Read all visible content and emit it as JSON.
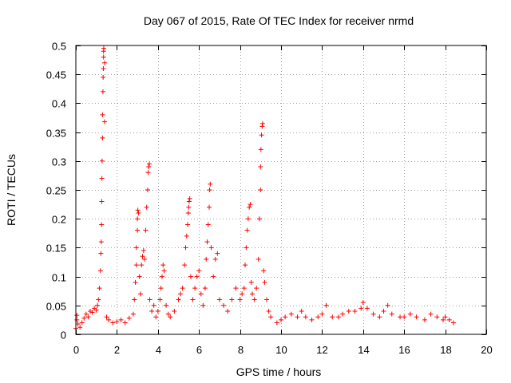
{
  "chart_data": {
    "type": "scatter",
    "title": "Day 067 of 2015, Rate Of TEC Index for receiver nrmd",
    "xlabel": "GPS time / hours",
    "ylabel": "ROTI / TECUs",
    "xlim": [
      0,
      20
    ],
    "ylim": [
      0,
      0.5
    ],
    "xticks": [
      0,
      2,
      4,
      6,
      8,
      10,
      12,
      14,
      16,
      18,
      20
    ],
    "yticks": [
      0,
      0.05,
      0.1,
      0.15,
      0.2,
      0.25,
      0.3,
      0.35,
      0.4,
      0.45,
      0.5
    ],
    "xtick_labels": [
      "0",
      "2",
      "4",
      "6",
      "8",
      "10",
      "12",
      "14",
      "16",
      "18",
      "20"
    ],
    "ytick_labels": [
      "0",
      "0.05",
      "0.1",
      "0.15",
      "0.2",
      "0.25",
      "0.3",
      "0.35",
      "0.4",
      "0.45",
      "0.5"
    ],
    "grid": true,
    "marker": "+",
    "color": "#ff0000",
    "series": [
      {
        "name": "ROTI",
        "points": [
          [
            0.0,
            0.01
          ],
          [
            0.05,
            0.025
          ],
          [
            0.05,
            0.033
          ],
          [
            0.1,
            0.018
          ],
          [
            0.2,
            0.012
          ],
          [
            0.3,
            0.02
          ],
          [
            0.4,
            0.028
          ],
          [
            0.5,
            0.035
          ],
          [
            0.6,
            0.03
          ],
          [
            0.7,
            0.04
          ],
          [
            0.8,
            0.038
          ],
          [
            0.9,
            0.045
          ],
          [
            1.0,
            0.042
          ],
          [
            1.05,
            0.05
          ],
          [
            1.1,
            0.06
          ],
          [
            1.15,
            0.08
          ],
          [
            1.2,
            0.11
          ],
          [
            1.22,
            0.14
          ],
          [
            1.24,
            0.16
          ],
          [
            1.25,
            0.19
          ],
          [
            1.26,
            0.23
          ],
          [
            1.27,
            0.27
          ],
          [
            1.28,
            0.3
          ],
          [
            1.3,
            0.34
          ],
          [
            1.3,
            0.38
          ],
          [
            1.32,
            0.42
          ],
          [
            1.33,
            0.445
          ],
          [
            1.34,
            0.46
          ],
          [
            1.35,
            0.48
          ],
          [
            1.35,
            0.49
          ],
          [
            1.36,
            0.495
          ],
          [
            1.4,
            0.47
          ],
          [
            1.4,
            0.368
          ],
          [
            1.5,
            0.03
          ],
          [
            1.6,
            0.025
          ],
          [
            1.8,
            0.02
          ],
          [
            2.0,
            0.022
          ],
          [
            2.2,
            0.025
          ],
          [
            2.4,
            0.02
          ],
          [
            2.6,
            0.028
          ],
          [
            2.8,
            0.035
          ],
          [
            2.85,
            0.06
          ],
          [
            2.9,
            0.09
          ],
          [
            2.95,
            0.12
          ],
          [
            2.95,
            0.15
          ],
          [
            3.0,
            0.18
          ],
          [
            3.0,
            0.2
          ],
          [
            3.02,
            0.215
          ],
          [
            3.05,
            0.21
          ],
          [
            3.1,
            0.1
          ],
          [
            3.15,
            0.07
          ],
          [
            3.2,
            0.12
          ],
          [
            3.25,
            0.135
          ],
          [
            3.3,
            0.145
          ],
          [
            3.35,
            0.13
          ],
          [
            3.4,
            0.18
          ],
          [
            3.45,
            0.22
          ],
          [
            3.5,
            0.25
          ],
          [
            3.52,
            0.28
          ],
          [
            3.55,
            0.29
          ],
          [
            3.58,
            0.295
          ],
          [
            3.6,
            0.06
          ],
          [
            3.7,
            0.04
          ],
          [
            3.8,
            0.05
          ],
          [
            3.9,
            0.03
          ],
          [
            4.0,
            0.04
          ],
          [
            4.1,
            0.06
          ],
          [
            4.15,
            0.08
          ],
          [
            4.2,
            0.1
          ],
          [
            4.25,
            0.12
          ],
          [
            4.3,
            0.11
          ],
          [
            4.4,
            0.05
          ],
          [
            4.5,
            0.035
          ],
          [
            4.6,
            0.03
          ],
          [
            4.8,
            0.04
          ],
          [
            5.0,
            0.06
          ],
          [
            5.1,
            0.07
          ],
          [
            5.2,
            0.08
          ],
          [
            5.3,
            0.12
          ],
          [
            5.35,
            0.15
          ],
          [
            5.4,
            0.17
          ],
          [
            5.45,
            0.19
          ],
          [
            5.48,
            0.21
          ],
          [
            5.5,
            0.22
          ],
          [
            5.52,
            0.23
          ],
          [
            5.55,
            0.235
          ],
          [
            5.6,
            0.1
          ],
          [
            5.7,
            0.06
          ],
          [
            5.8,
            0.08
          ],
          [
            5.9,
            0.1
          ],
          [
            6.0,
            0.11
          ],
          [
            6.1,
            0.07
          ],
          [
            6.2,
            0.05
          ],
          [
            6.3,
            0.08
          ],
          [
            6.35,
            0.13
          ],
          [
            6.4,
            0.16
          ],
          [
            6.45,
            0.19
          ],
          [
            6.5,
            0.22
          ],
          [
            6.52,
            0.25
          ],
          [
            6.55,
            0.26
          ],
          [
            6.6,
            0.15
          ],
          [
            6.7,
            0.1
          ],
          [
            6.8,
            0.13
          ],
          [
            6.9,
            0.14
          ],
          [
            7.0,
            0.06
          ],
          [
            7.2,
            0.05
          ],
          [
            7.4,
            0.04
          ],
          [
            7.6,
            0.06
          ],
          [
            7.8,
            0.08
          ],
          [
            8.0,
            0.06
          ],
          [
            8.1,
            0.07
          ],
          [
            8.2,
            0.08
          ],
          [
            8.25,
            0.12
          ],
          [
            8.3,
            0.15
          ],
          [
            8.35,
            0.18
          ],
          [
            8.4,
            0.2
          ],
          [
            8.45,
            0.22
          ],
          [
            8.5,
            0.225
          ],
          [
            8.55,
            0.09
          ],
          [
            8.6,
            0.07
          ],
          [
            8.7,
            0.06
          ],
          [
            8.8,
            0.08
          ],
          [
            8.9,
            0.13
          ],
          [
            8.95,
            0.2
          ],
          [
            9.0,
            0.25
          ],
          [
            9.0,
            0.29
          ],
          [
            9.02,
            0.32
          ],
          [
            9.05,
            0.345
          ],
          [
            9.08,
            0.36
          ],
          [
            9.1,
            0.365
          ],
          [
            9.15,
            0.11
          ],
          [
            9.2,
            0.09
          ],
          [
            9.3,
            0.06
          ],
          [
            9.4,
            0.04
          ],
          [
            9.5,
            0.03
          ],
          [
            9.8,
            0.02
          ],
          [
            10.0,
            0.025
          ],
          [
            10.2,
            0.03
          ],
          [
            10.5,
            0.035
          ],
          [
            10.8,
            0.03
          ],
          [
            11.0,
            0.04
          ],
          [
            11.2,
            0.03
          ],
          [
            11.5,
            0.025
          ],
          [
            11.8,
            0.03
          ],
          [
            12.0,
            0.035
          ],
          [
            12.2,
            0.05
          ],
          [
            12.5,
            0.03
          ],
          [
            12.8,
            0.03
          ],
          [
            13.0,
            0.035
          ],
          [
            13.3,
            0.04
          ],
          [
            13.6,
            0.04
          ],
          [
            13.9,
            0.045
          ],
          [
            14.0,
            0.055
          ],
          [
            14.2,
            0.045
          ],
          [
            14.5,
            0.035
          ],
          [
            14.8,
            0.03
          ],
          [
            15.0,
            0.04
          ],
          [
            15.2,
            0.05
          ],
          [
            15.4,
            0.035
          ],
          [
            15.8,
            0.03
          ],
          [
            16.0,
            0.03
          ],
          [
            16.3,
            0.035
          ],
          [
            16.6,
            0.03
          ],
          [
            17.0,
            0.025
          ],
          [
            17.3,
            0.035
          ],
          [
            17.6,
            0.03
          ],
          [
            17.9,
            0.025
          ],
          [
            18.0,
            0.03
          ],
          [
            18.2,
            0.025
          ],
          [
            18.4,
            0.02
          ]
        ]
      }
    ]
  }
}
